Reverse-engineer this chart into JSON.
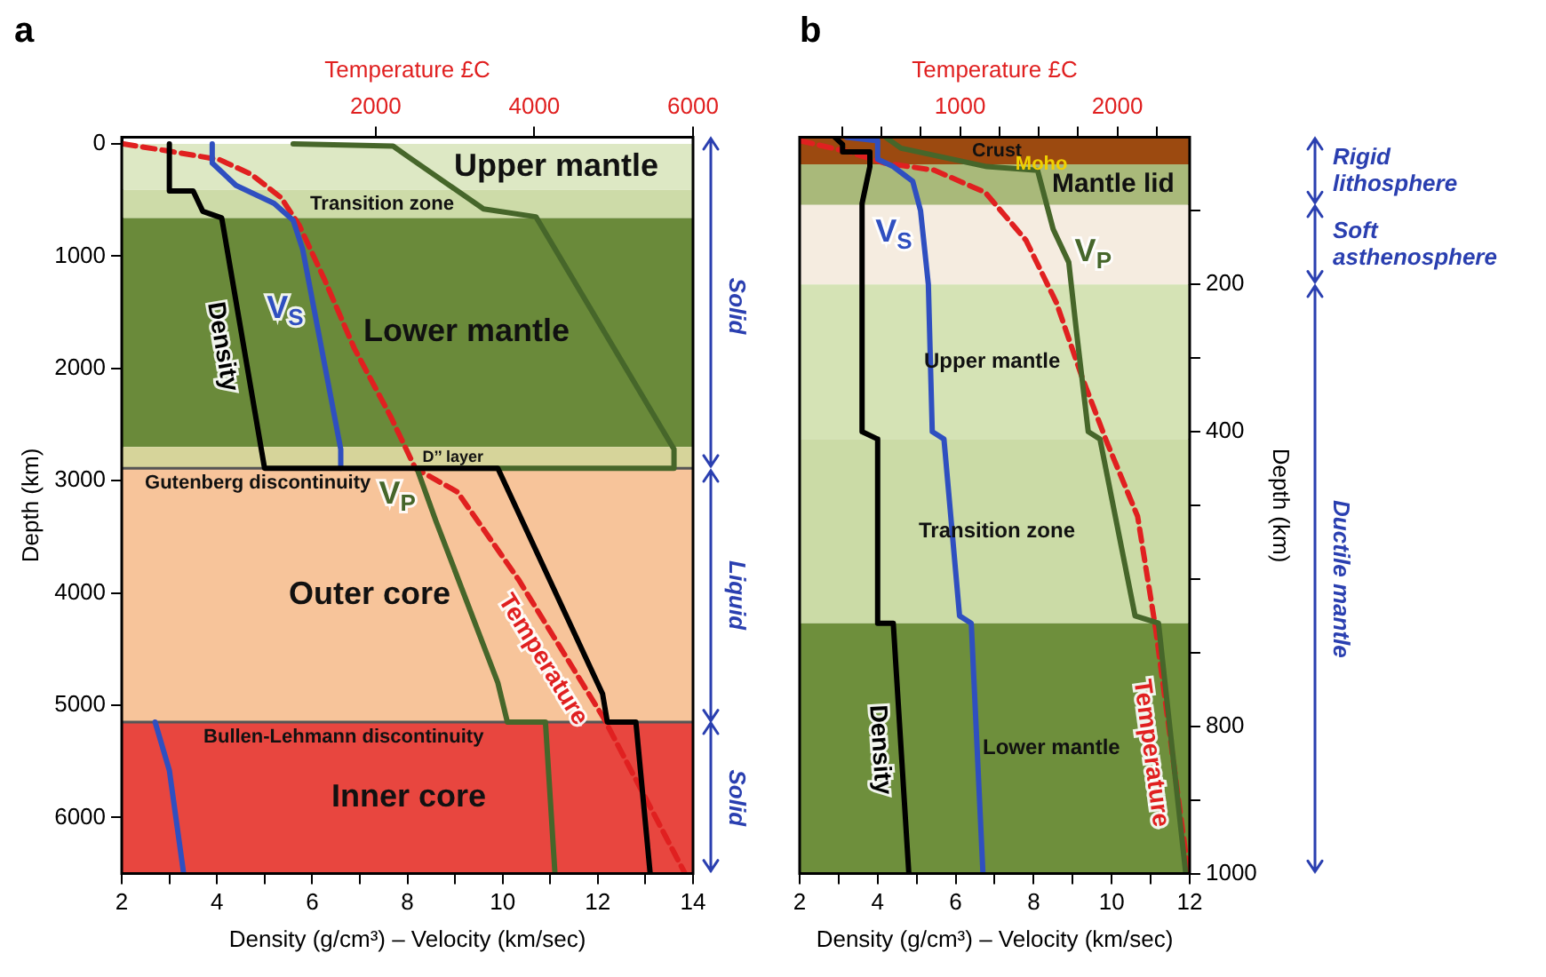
{
  "chart_data": [
    {
      "type": "line",
      "title": "a",
      "xlabel": "Density (g/cm³) – Velocity (km/sec)",
      "ylabel": "Depth (km)",
      "x2label": "Temperature £C",
      "xlim": [
        2,
        14
      ],
      "xticks": [
        2,
        {
          "value": 3,
          "label": null
        },
        4,
        {
          "value": 5,
          "label": null
        },
        6,
        {
          "value": 7,
          "label": null
        },
        8,
        {
          "value": 9,
          "label": null
        },
        10,
        {
          "value": 11,
          "label": null
        },
        12,
        {
          "value": 13,
          "label": null
        },
        14
      ],
      "ylim": [
        6500,
        -60
      ],
      "yticks": [
        0,
        1000,
        2000,
        3000,
        4000,
        5000,
        6000
      ],
      "x2lim": [
        -1200,
        6000
      ],
      "x2ticks": [
        2000,
        4000,
        6000
      ],
      "series": [
        {
          "name": "Density",
          "color": "#000000",
          "x": [
            3.0,
            3.0,
            3.5,
            3.7,
            4.1,
            5.0,
            9.9,
            12.1,
            12.2,
            12.8,
            13.1
          ],
          "values": [
            0,
            420,
            420,
            600,
            660,
            2890,
            2890,
            4900,
            5150,
            5150,
            6500
          ]
        },
        {
          "name": "V$_{S}$",
          "color": "#2f4fc0",
          "x": [
            3.9,
            3.9,
            4.4,
            5.2,
            5.6,
            5.8,
            6.6,
            6.6,
            null,
            2.7,
            3.0,
            3.3
          ],
          "values": [
            0,
            170,
            370,
            530,
            680,
            940,
            2720,
            2890,
            null,
            5150,
            5580,
            6500
          ]
        },
        {
          "name": "V$_{P}$",
          "color": "#46662a",
          "x": [
            5.6,
            7.7,
            8.0,
            9.6,
            10.7,
            13.6,
            13.6,
            8.2,
            8.6,
            9.9,
            10.1,
            10.9,
            11.1
          ],
          "values": [
            0,
            20,
            110,
            580,
            650,
            2720,
            2890,
            2890,
            3360,
            4800,
            5150,
            5150,
            6500
          ]
        },
        {
          "name": "Temperature",
          "color": "#e02020",
          "axis": "x2",
          "line_style": "dashed",
          "x": [
            -1180,
            -645,
            30,
            430,
            810,
            1040,
            1350,
            1730,
            2190,
            2500,
            3030,
            3800,
            4870,
            5330,
            5900
          ],
          "values": [
            0,
            60,
            140,
            270,
            480,
            730,
            1200,
            1820,
            2430,
            2890,
            3100,
            3880,
            5110,
            5730,
            6500
          ]
        }
      ],
      "bands": [
        {
          "axis": "y",
          "from": 0,
          "to": 410,
          "label": "Upper mantle",
          "color": "#dde8c4"
        },
        {
          "axis": "y",
          "from": 410,
          "to": 660,
          "label": "Transition zone",
          "color": "#cddba8"
        },
        {
          "axis": "y",
          "from": 660,
          "to": 2700,
          "label": "Lower mantle",
          "color": "#6a8a3a"
        },
        {
          "axis": "y",
          "from": 2700,
          "to": 2890,
          "label": "D’’ layer",
          "color": "#d6d49a"
        },
        {
          "axis": "y",
          "from": 2890,
          "to": 5150,
          "label": "Outer core",
          "color": "#f7c49a"
        },
        {
          "axis": "y",
          "from": 5150,
          "to": 6500,
          "label": "Inner core",
          "color": "#e8463f"
        }
      ],
      "ref_lines": [
        {
          "axis": "y",
          "value": 2890,
          "label": "Gutenberg discontinuity"
        },
        {
          "axis": "y",
          "value": 5150,
          "label": "Bullen-Lehmann discontinuity"
        }
      ],
      "annotations": [
        "Solid",
        "Liquid",
        "Solid"
      ]
    },
    {
      "type": "line",
      "title": "b",
      "xlabel": "Density (g/cm³) – Velocity (km/sec)",
      "ylabel": "Depth (km)",
      "x2label": "Temperature £C",
      "xlim": [
        2,
        12
      ],
      "xticks": [
        2,
        {
          "value": 3,
          "label": null
        },
        4,
        {
          "value": 5,
          "label": null
        },
        6,
        {
          "value": 7,
          "label": null
        },
        8,
        {
          "value": 9,
          "label": null
        },
        10,
        {
          "value": 11,
          "label": null
        },
        12
      ],
      "ylim": [
        1000,
        0
      ],
      "yticks": [
        {
          "value": 100,
          "label": null
        },
        200,
        {
          "value": 300,
          "label": null
        },
        400,
        {
          "value": 500,
          "label": null
        },
        {
          "value": 600,
          "label": null
        },
        {
          "value": 700,
          "label": null
        },
        800,
        {
          "value": 900,
          "label": null
        },
        1000
      ],
      "x2lim": [
        -20,
        2460
      ],
      "x2ticks": [
        {
          "value": 250,
          "label": null
        },
        {
          "value": 500,
          "label": null
        },
        {
          "value": 750,
          "label": null
        },
        1000,
        {
          "value": 1250,
          "label": null
        },
        {
          "value": 1500,
          "label": null
        },
        {
          "value": 1750,
          "label": null
        },
        2000,
        {
          "value": 2250,
          "label": null
        }
      ],
      "series": [
        {
          "name": "Density",
          "color": "#000000",
          "x": [
            2.9,
            3.1,
            3.1,
            3.8,
            3.8,
            3.6,
            3.6,
            4.0,
            4.0,
            4.4,
            4.8
          ],
          "values": [
            0,
            10,
            20,
            20,
            40,
            90,
            400,
            410,
            660,
            660,
            1000
          ]
        },
        {
          "name": "V$_{S}$",
          "color": "#2f4fc0",
          "x": [
            3.2,
            4.0,
            4.0,
            4.4,
            4.9,
            5.1,
            5.3,
            5.4,
            5.7,
            6.1,
            6.4,
            6.7
          ],
          "values": [
            0,
            5,
            30,
            40,
            60,
            100,
            200,
            400,
            410,
            650,
            660,
            1000
          ]
        },
        {
          "name": "V$_{P}$",
          "color": "#46662a",
          "x": [
            4.2,
            4.6,
            6.8,
            8.1,
            8.3,
            8.5,
            8.9,
            9.1,
            9.4,
            9.7,
            10.6,
            11.2,
            11.9
          ],
          "values": [
            0,
            15,
            40,
            45,
            85,
            125,
            170,
            265,
            400,
            410,
            650,
            660,
            1000
          ]
        },
        {
          "name": "Temperature",
          "color": "#e02020",
          "axis": "x2",
          "line_style": "dashed",
          "x": [
            -16,
            289,
            516,
            838,
            1160,
            1419,
            1613,
            1774,
            1935,
            2129,
            2242,
            2452
          ],
          "values": [
            5,
            20,
            35,
            45,
            75,
            140,
            225,
            325,
            415,
            515,
            665,
            1000
          ]
        }
      ],
      "bands": [
        {
          "axis": "y",
          "from": 0,
          "to": 37,
          "label": "Crust",
          "color": "#9c4a10"
        },
        {
          "axis": "y",
          "from": 37,
          "to": 92,
          "label": "Mantle lid",
          "color": "#a9b97a"
        },
        {
          "axis": "y",
          "from": 92,
          "to": 200,
          "color": "#f5ece0"
        },
        {
          "axis": "y",
          "from": 200,
          "to": 410,
          "label": "Upper mantle",
          "color": "#d5e3b5"
        },
        {
          "axis": "y",
          "from": 410,
          "to": 660,
          "label": "Transition zone",
          "color": "#cbdba6"
        },
        {
          "axis": "y",
          "from": 660,
          "to": 1000,
          "label": "Lower mantle",
          "color": "#6e8f3c"
        }
      ],
      "annotations": [
        {
          "text": "Moho",
          "x": 8.2,
          "y": 37
        },
        "Rigid lithosphere",
        "Soft asthenosphere",
        "Ductile mantle"
      ]
    }
  ]
}
